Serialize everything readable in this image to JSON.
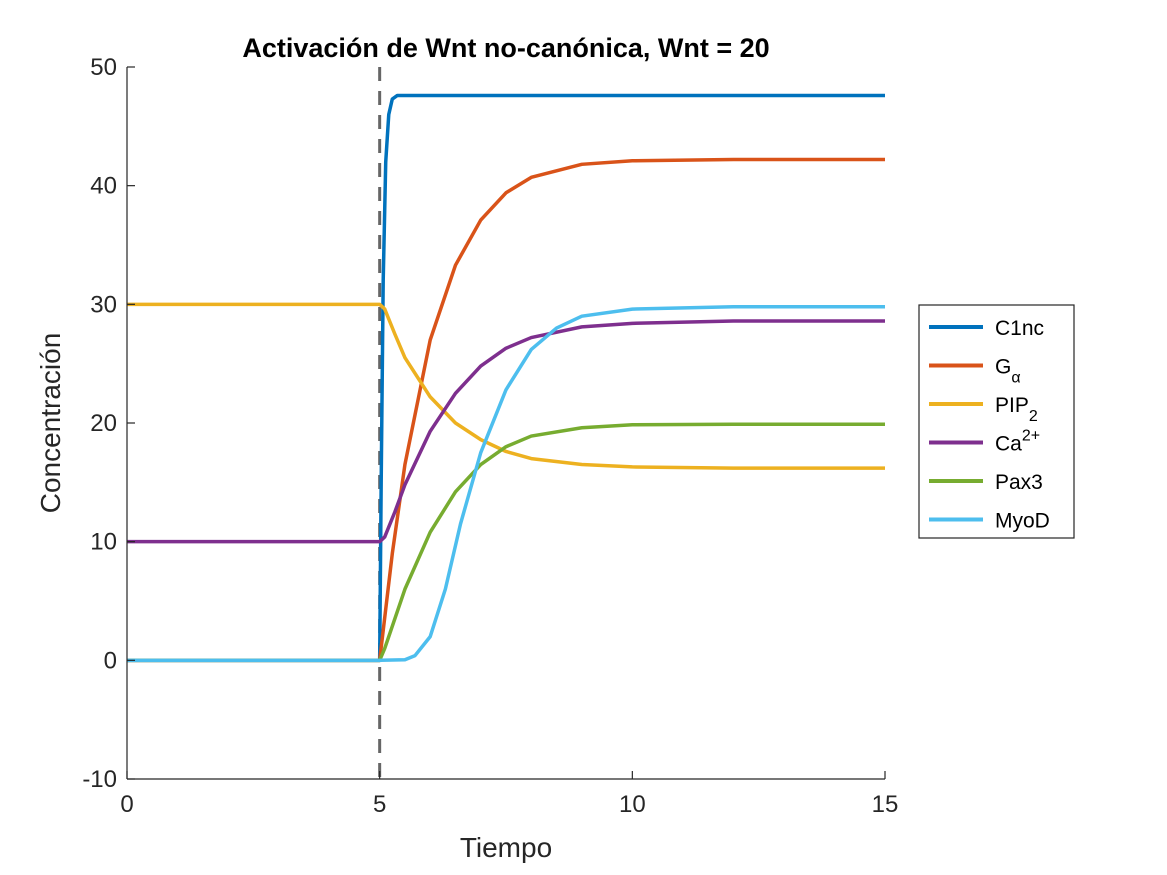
{
  "chart_data": {
    "type": "line",
    "title": "Activación de Wnt no-canónica, Wnt = 20",
    "xlabel": "Tiempo",
    "ylabel": "Concentración",
    "xlim": [
      0,
      15
    ],
    "ylim": [
      -10,
      50
    ],
    "xticks": [
      "0",
      "5",
      "10",
      "15"
    ],
    "yticks": [
      "-10",
      "0",
      "10",
      "20",
      "30",
      "40",
      "50"
    ],
    "grid": false,
    "legend_position": "outside-right",
    "vline": {
      "x": 5,
      "style": "dashed",
      "color": "#666666"
    },
    "series": [
      {
        "name": "C1nc",
        "color": "#0072BD",
        "points": [
          [
            0,
            0
          ],
          [
            4.99,
            0
          ],
          [
            5.0,
            0
          ],
          [
            5.03,
            15
          ],
          [
            5.07,
            32
          ],
          [
            5.12,
            42
          ],
          [
            5.18,
            46
          ],
          [
            5.25,
            47.3
          ],
          [
            5.35,
            47.6
          ],
          [
            6,
            47.6
          ],
          [
            15,
            47.6
          ]
        ]
      },
      {
        "name": "G",
        "name_sub": "α",
        "color": "#D95319",
        "points": [
          [
            0,
            0
          ],
          [
            5.0,
            0
          ],
          [
            5.25,
            9
          ],
          [
            5.5,
            16.5
          ],
          [
            6,
            27
          ],
          [
            6.5,
            33.3
          ],
          [
            7,
            37.1
          ],
          [
            7.5,
            39.4
          ],
          [
            8,
            40.7
          ],
          [
            9,
            41.8
          ],
          [
            10,
            42.1
          ],
          [
            12,
            42.2
          ],
          [
            15,
            42.2
          ]
        ]
      },
      {
        "name": "PIP",
        "name_sub": "2",
        "color": "#EDB120",
        "points": [
          [
            0,
            30
          ],
          [
            5.0,
            30
          ],
          [
            5.1,
            29.6
          ],
          [
            5.3,
            27.5
          ],
          [
            5.5,
            25.5
          ],
          [
            6,
            22.2
          ],
          [
            6.5,
            20.0
          ],
          [
            7,
            18.6
          ],
          [
            7.5,
            17.6
          ],
          [
            8,
            17.0
          ],
          [
            9,
            16.5
          ],
          [
            10,
            16.3
          ],
          [
            12,
            16.2
          ],
          [
            15,
            16.2
          ]
        ]
      },
      {
        "name": "Ca",
        "name_sup": "2+",
        "color": "#7E2F8E",
        "points": [
          [
            0,
            10
          ],
          [
            5.0,
            10
          ],
          [
            5.1,
            10.4
          ],
          [
            5.3,
            12.5
          ],
          [
            5.5,
            14.8
          ],
          [
            6,
            19.3
          ],
          [
            6.5,
            22.5
          ],
          [
            7,
            24.8
          ],
          [
            7.5,
            26.3
          ],
          [
            8,
            27.2
          ],
          [
            9,
            28.1
          ],
          [
            10,
            28.4
          ],
          [
            12,
            28.6
          ],
          [
            15,
            28.6
          ]
        ]
      },
      {
        "name": "Pax3",
        "color": "#77AC30",
        "points": [
          [
            0,
            0
          ],
          [
            5.0,
            0
          ],
          [
            5.1,
            1.0
          ],
          [
            5.3,
            3.5
          ],
          [
            5.5,
            6.0
          ],
          [
            6,
            10.8
          ],
          [
            6.5,
            14.2
          ],
          [
            7,
            16.5
          ],
          [
            7.5,
            18.0
          ],
          [
            8,
            18.9
          ],
          [
            9,
            19.6
          ],
          [
            10,
            19.85
          ],
          [
            12,
            19.9
          ],
          [
            15,
            19.9
          ]
        ]
      },
      {
        "name": "MyoD",
        "color": "#4DBEEE",
        "points": [
          [
            0,
            0
          ],
          [
            5.0,
            0
          ],
          [
            5.5,
            0.05
          ],
          [
            5.7,
            0.4
          ],
          [
            6,
            2.0
          ],
          [
            6.3,
            6.0
          ],
          [
            6.6,
            11.5
          ],
          [
            7,
            17.5
          ],
          [
            7.5,
            22.8
          ],
          [
            8,
            26.2
          ],
          [
            8.5,
            28.0
          ],
          [
            9,
            29.0
          ],
          [
            10,
            29.6
          ],
          [
            12,
            29.8
          ],
          [
            15,
            29.8
          ]
        ]
      }
    ]
  }
}
